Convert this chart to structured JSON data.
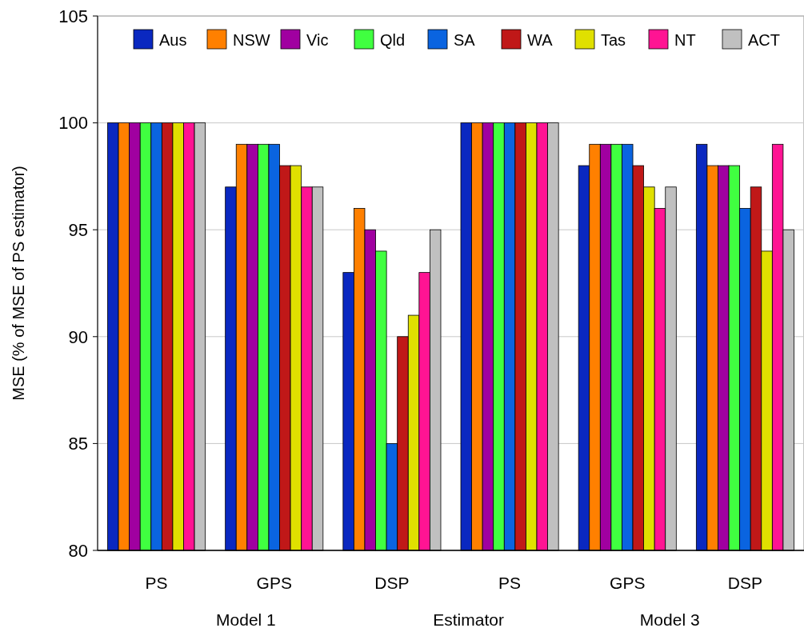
{
  "chart_data": {
    "type": "bar",
    "ylabel": "MSE (% of MSE of PS estimator)",
    "xlabel": "Estimator",
    "annotations": [
      "Model 1",
      "Model 3"
    ],
    "categories": [
      "PS",
      "GPS",
      "DSP",
      "PS",
      "GPS",
      "DSP"
    ],
    "series": [
      {
        "name": "Aus",
        "color": "#0a28c0",
        "values": [
          100,
          97,
          93,
          100,
          98,
          99
        ]
      },
      {
        "name": "NSW",
        "color": "#ff8000",
        "values": [
          100,
          99,
          96,
          100,
          99,
          98
        ]
      },
      {
        "name": "Vic",
        "color": "#a000a0",
        "values": [
          100,
          99,
          95,
          100,
          99,
          98
        ]
      },
      {
        "name": "Qld",
        "color": "#40ff40",
        "values": [
          100,
          99,
          94,
          100,
          99,
          98
        ]
      },
      {
        "name": "SA",
        "color": "#0a64e0",
        "values": [
          100,
          99,
          85,
          100,
          99,
          96
        ]
      },
      {
        "name": "WA",
        "color": "#c01818",
        "values": [
          100,
          98,
          90,
          100,
          98,
          97
        ]
      },
      {
        "name": "Tas",
        "color": "#e0e000",
        "values": [
          100,
          98,
          91,
          100,
          97,
          94
        ]
      },
      {
        "name": "NT",
        "color": "#ff1493",
        "values": [
          100,
          97,
          93,
          100,
          96,
          99
        ]
      },
      {
        "name": "ACT",
        "color": "#c0c0c0",
        "values": [
          100,
          97,
          95,
          100,
          97,
          95
        ]
      }
    ],
    "ylim": [
      80,
      105
    ],
    "yticks": [
      80,
      85,
      90,
      95,
      100,
      105
    ],
    "grid": "y",
    "legend": "top"
  }
}
